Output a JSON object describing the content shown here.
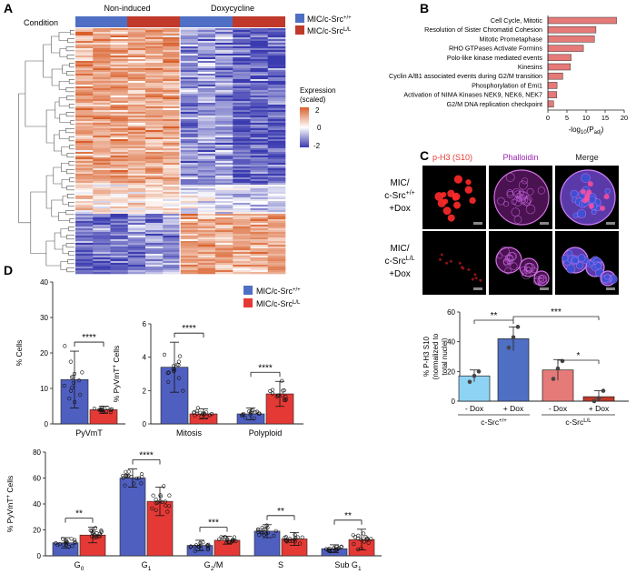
{
  "chart_data": [
    {
      "panel": "A",
      "type": "heatmap",
      "condition_label": "Condition",
      "groups": [
        "Non-induced",
        "Doxycycline"
      ],
      "legend": [
        {
          "name": "MIC/c-Src",
          "sup": "+/+",
          "color": "#4f6fc4"
        },
        {
          "name": "MIC/c-Src",
          "sup": "L/L",
          "color": "#c0392b"
        }
      ],
      "colorbar": {
        "title": "Expression",
        "subtitle": "(scaled)",
        "ticks": [
          "2",
          "0",
          "-2"
        ],
        "range": [
          -2,
          2
        ]
      },
      "colors": {
        "low": "#3b3bb0",
        "mid": "#ffffff",
        "high": "#d9602b"
      }
    },
    {
      "panel": "B",
      "type": "bar",
      "orientation": "horizontal",
      "categories": [
        "Cell Cycle, Mitotic",
        "Resolution of Sister Chromatid Cohesion",
        "Mitotic Prometaphase",
        "RHO GTPases Activate Formins",
        "Polo-like kinase mediated events",
        "Kinesins",
        "Cyclin A/B1 associated events during G2/M transition",
        "Phosphorylation of Emi1",
        "Activation of NIMA Kinases NEK9, NEK6, NEK7",
        "G2/M DNA replication checkpoint"
      ],
      "values": [
        18,
        12.6,
        12.2,
        9.3,
        6.1,
        5.9,
        3.9,
        2.4,
        2.3,
        1.5
      ],
      "xlim": [
        0,
        20
      ],
      "xticks": [
        "0",
        "5",
        "10",
        "15",
        "20"
      ],
      "xlabel_prefix": "-log",
      "xlabel_sub": "10",
      "xlabel_mid": "(P",
      "xlabel_sub2": "adj",
      "xlabel_suffix": ")",
      "color": "#e57a78"
    },
    {
      "panel": "C",
      "type": "image_grid",
      "columns": [
        "p-H3 (S10)",
        "Phalloidin",
        "Merge"
      ],
      "column_colors": [
        "#e53935",
        "#9c27b0",
        "#222222"
      ],
      "rows": [
        {
          "l1": "MIC/",
          "l2": "c-Src",
          "sup": "+/+",
          "l3": "+Dox"
        },
        {
          "l1": "MIC/",
          "l2": "c-Src",
          "sup": "L/L",
          "l3": "+Dox"
        }
      ]
    },
    {
      "panel": "C",
      "type": "bar",
      "categories": [
        "- Dox",
        "+ Dox",
        "- Dox",
        "+ Dox"
      ],
      "values": [
        17,
        42,
        21,
        3
      ],
      "errors": [
        4,
        8,
        7,
        4
      ],
      "points": [
        [
          13,
          17,
          20
        ],
        [
          36,
          43,
          50
        ],
        [
          15,
          22,
          27
        ],
        [
          0,
          2,
          7
        ]
      ],
      "colors": [
        "#8fd3f4",
        "#4f6fc4",
        "#e57a78",
        "#c0392b"
      ],
      "ylim": [
        0,
        60
      ],
      "yticks": [
        "0",
        "20",
        "40",
        "60"
      ],
      "ylabel": "% P-H3 S10",
      "ylabel2": "(normalized to",
      "ylabel3": "total nuclei)",
      "group_labels": [
        {
          "name": "c-Src",
          "sup": "+/+"
        },
        {
          "name": "c-Src",
          "sup": "L/L"
        }
      ],
      "significance": [
        {
          "a": 0,
          "b": 1,
          "label": "**"
        },
        {
          "a": 1,
          "b": 3,
          "label": "***"
        },
        {
          "a": 2,
          "b": 3,
          "label": "*"
        }
      ]
    },
    {
      "panel": "D",
      "type": "bar",
      "ylabel": "% Cells",
      "categories": [
        "PyVmT"
      ],
      "series": [
        {
          "name": "MIC/c-Src+/+",
          "values": [
            12.5
          ],
          "errors": [
            8
          ]
        },
        {
          "name": "MIC/c-SrcL/L",
          "values": [
            4
          ],
          "errors": [
            1
          ]
        }
      ],
      "ylim": [
        0,
        40
      ],
      "yticks": [
        "0",
        "10",
        "20",
        "30",
        "40"
      ],
      "significance": [
        {
          "label": "****"
        }
      ]
    },
    {
      "panel": "D",
      "type": "bar",
      "ylabel": "% PyVmT",
      "ylabel_sup": "+",
      "ylabel_tail": " Cells",
      "categories": [
        "Mitosis",
        "Polyploid"
      ],
      "series": [
        {
          "name": "MIC/c-Src+/+",
          "values": [
            3.4,
            0.6
          ],
          "errors": [
            1.5,
            0.35
          ]
        },
        {
          "name": "MIC/c-SrcL/L",
          "values": [
            0.6,
            1.8
          ],
          "errors": [
            0.3,
            0.75
          ]
        }
      ],
      "ylim": [
        0,
        6
      ],
      "yticks": [
        "0",
        "2",
        "4",
        "6"
      ],
      "significance": [
        {
          "label": "****"
        },
        {
          "label": "****"
        }
      ],
      "legend": [
        {
          "name": "MIC/c-Src",
          "sup": "+/+",
          "color": "#4f6fc4"
        },
        {
          "name": "MIC/c-Src",
          "sup": "L/L",
          "color": "#e53935"
        }
      ]
    },
    {
      "panel": "D",
      "type": "bar",
      "ylabel": "% PyVmT",
      "ylabel_sup": "+",
      "ylabel_tail": " Cells",
      "categories": [
        {
          "main": "G",
          "sub": "0"
        },
        {
          "main": "G",
          "sub": "1"
        },
        {
          "main": "G",
          "sub": "2",
          "tail": "/M"
        },
        {
          "main": "S",
          "sub": ""
        },
        {
          "main": "Sub G",
          "sub": "1"
        }
      ],
      "series": [
        {
          "name": "MIC/c-Src+/+",
          "values": [
            10,
            60,
            8,
            19,
            5.5
          ],
          "errors": [
            4,
            7,
            4,
            5,
            3
          ]
        },
        {
          "name": "MIC/c-SrcL/L",
          "values": [
            16,
            42,
            12,
            13,
            12.5
          ],
          "errors": [
            6,
            11,
            3,
            5,
            8
          ]
        }
      ],
      "ylim": [
        0,
        80
      ],
      "yticks": [
        "0",
        "20",
        "40",
        "60",
        "80"
      ],
      "significance": [
        {
          "label": "**"
        },
        {
          "label": "****"
        },
        {
          "label": "***"
        },
        {
          "label": "**"
        },
        {
          "label": "**"
        }
      ]
    }
  ],
  "panel_labels": [
    "A",
    "B",
    "C",
    "D"
  ]
}
